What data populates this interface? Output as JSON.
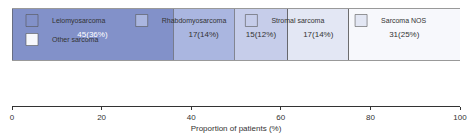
{
  "chart_data": {
    "type": "bar",
    "orientation": "horizontal",
    "stacked": true,
    "data_labels": true,
    "tick_labels": "x",
    "legend": "top",
    "grid": false,
    "x_label": "Proportion of patients (%)",
    "categories": [
      null
    ],
    "xlim": [
      0,
      100
    ],
    "xticks": [
      0,
      20,
      40,
      60,
      80,
      100
    ],
    "series": [
      {
        "name": "Leiomyosarcoma",
        "color": "#8291c9",
        "values": [
          36
        ],
        "value_labels": [
          "45(36%)"
        ]
      },
      {
        "name": "Rhabdomyosarcoma",
        "color": "#aab6e0",
        "values": [
          13.6
        ],
        "value_labels": [
          "17(14%)"
        ]
      },
      {
        "name": "Stromal sarcoma",
        "color": "#c6cdea",
        "values": [
          12
        ],
        "value_labels": [
          "15(12%)"
        ]
      },
      {
        "name": "Sarcoma NOS",
        "color": "#e3e7f4",
        "values": [
          13.6
        ],
        "value_labels": [
          "17(14%)"
        ]
      },
      {
        "name": "Other sarcoma",
        "color": "#f7f8fc",
        "values": [
          24.8
        ],
        "value_labels": [
          "31(25%)"
        ]
      }
    ]
  }
}
